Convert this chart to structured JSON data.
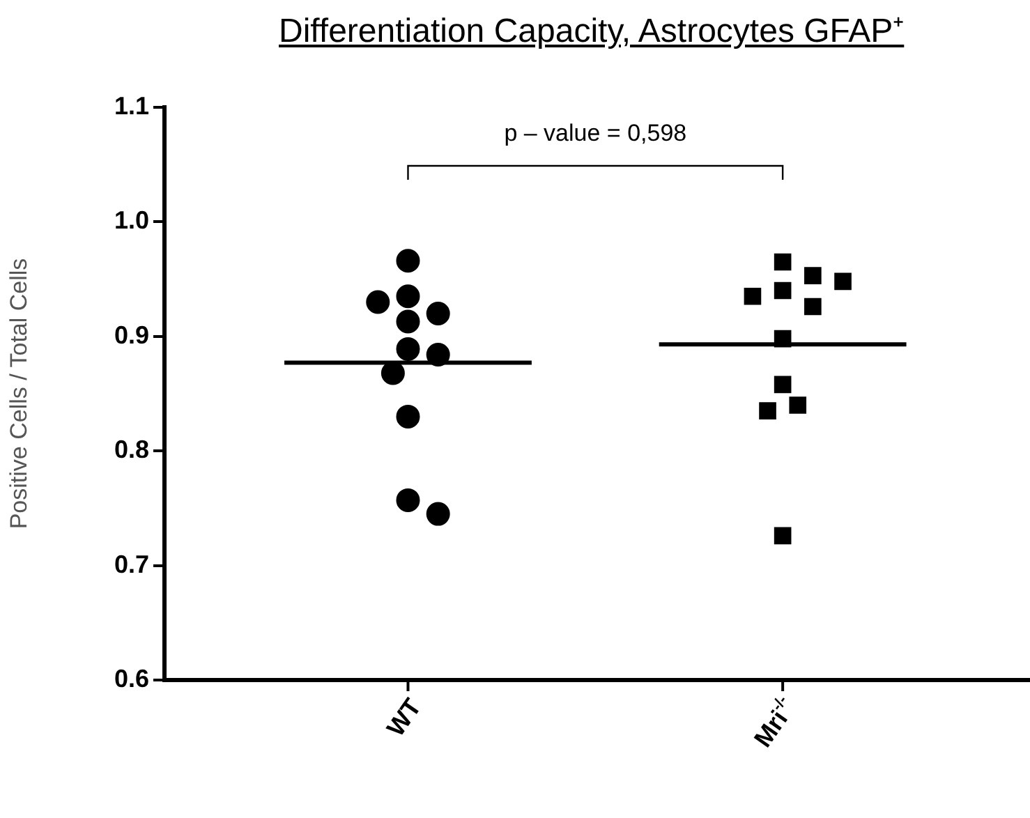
{
  "chart_data": {
    "type": "scatter",
    "title": "Differentiation Capacity, Astrocytes GFAP⁺",
    "ylabel": "Positive Cells / Total Cells",
    "categories": [
      "WT",
      "Mri$^{-/-}$"
    ],
    "ylim": [
      0.6,
      1.1
    ],
    "yticks": [
      0.6,
      0.7,
      0.8,
      0.9,
      {
        "value": 1,
        "label": "1.0"
      },
      1.1
    ],
    "grid": false,
    "legend": false,
    "annotations": [
      "p – value = 0,598"
    ],
    "series": [
      {
        "type": "scatter",
        "marker": "circle",
        "color": "#000000",
        "x": [
          "WT",
          "WT",
          "WT",
          "WT",
          "WT",
          "WT",
          "WT",
          "WT",
          "WT",
          "WT",
          "WT"
        ],
        "values": [
          0.966,
          0.935,
          0.92,
          0.913,
          0.93,
          0.889,
          0.884,
          0.868,
          0.83,
          0.757,
          0.745
        ]
      },
      {
        "type": "scatter",
        "marker": "square",
        "color": "#000000",
        "x": [
          "Mri$^{-/-}$",
          "Mri$^{-/-}$",
          "Mri$^{-/-}$",
          "Mri$^{-/-}$",
          "Mri$^{-/-}$",
          "Mri$^{-/-}$",
          "Mri$^{-/-}$",
          "Mri$^{-/-}$",
          "Mri$^{-/-}$",
          "Mri$^{-/-}$",
          "Mri$^{-/-}$"
        ],
        "values": [
          0.965,
          0.953,
          0.94,
          0.926,
          0.935,
          0.948,
          0.898,
          0.858,
          0.84,
          0.835,
          0.726
        ]
      }
    ],
    "ref_lines": [
      {
        "axis": "y",
        "value": 0.877,
        "color": "#000000"
      },
      {
        "axis": "y",
        "value": 0.893,
        "color": "#000000"
      }
    ]
  }
}
